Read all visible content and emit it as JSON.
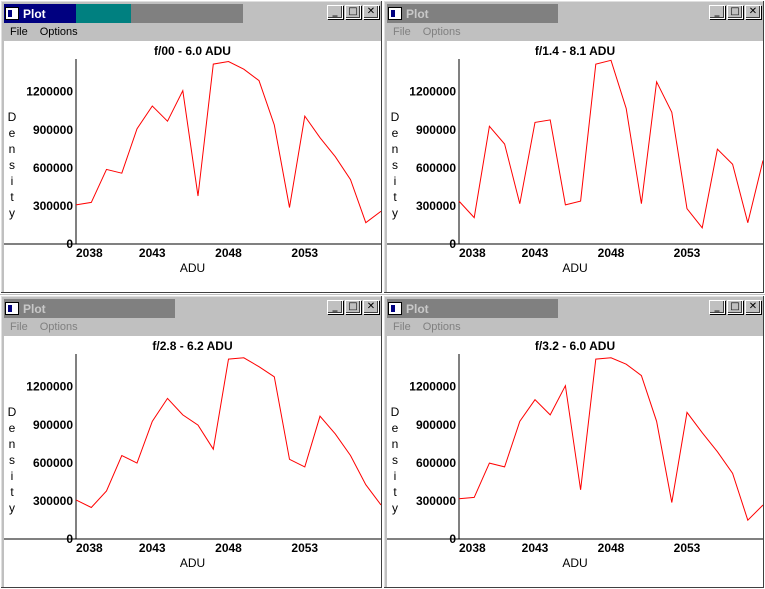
{
  "colors": {
    "active_title_bar": "#000080",
    "active_title_accent": "#008080",
    "inactive_title_bar": "#808080",
    "plot_line": "#ff0000",
    "axis": "#000000"
  },
  "menu": [
    "File",
    "Options"
  ],
  "window_controls": {
    "minimize": "_",
    "maximize": "□",
    "close": "✕"
  },
  "windows": [
    {
      "title": "Plot",
      "active": true,
      "chart_data": {
        "type": "line",
        "title": "f/00 - 6.0 ADU",
        "xlabel": "ADU",
        "ylabel": "Density",
        "xlim": [
          2038,
          2058
        ],
        "ylim": [
          0,
          1450000
        ],
        "xticks": [
          2038,
          2043,
          2048,
          2053
        ],
        "yticks": [
          0,
          300000,
          600000,
          900000,
          1200000
        ],
        "series": [
          {
            "x": [
              2038,
              2039,
              2040,
              2041,
              2042,
              2043,
              2044,
              2045,
              2046,
              2047,
              2048,
              2049,
              2050,
              2051,
              2052,
              2053,
              2054,
              2055,
              2056,
              2057,
              2058
            ],
            "values": [
              300000,
              320000,
              580000,
              550000,
              900000,
              1080000,
              960000,
              1200000,
              370000,
              1410000,
              1430000,
              1370000,
              1280000,
              930000,
              280000,
              1000000,
              830000,
              680000,
              500000,
              160000,
              250000
            ]
          }
        ]
      }
    },
    {
      "title": "Plot",
      "active": false,
      "chart_data": {
        "type": "line",
        "title": "f/1.4 - 8.1 ADU",
        "xlabel": "ADU",
        "ylabel": "Density",
        "xlim": [
          2038,
          2058
        ],
        "ylim": [
          0,
          1450000
        ],
        "xticks": [
          2038,
          2043,
          2048,
          2053
        ],
        "yticks": [
          0,
          300000,
          600000,
          900000,
          1200000
        ],
        "series": [
          {
            "x": [
              2038,
              2039,
              2040,
              2041,
              2042,
              2043,
              2044,
              2045,
              2046,
              2047,
              2048,
              2049,
              2050,
              2051,
              2052,
              2053,
              2054,
              2055,
              2056,
              2057,
              2058
            ],
            "values": [
              330000,
              200000,
              920000,
              780000,
              310000,
              950000,
              970000,
              300000,
              330000,
              1410000,
              1440000,
              1060000,
              310000,
              1270000,
              1030000,
              270000,
              120000,
              740000,
              620000,
              160000,
              650000
            ]
          }
        ]
      }
    },
    {
      "title": "Plot",
      "active": false,
      "chart_data": {
        "type": "line",
        "title": "f/2.8 - 6.2 ADU",
        "xlabel": "ADU",
        "ylabel": "Density",
        "xlim": [
          2038,
          2058
        ],
        "ylim": [
          0,
          1450000
        ],
        "xticks": [
          2038,
          2043,
          2048,
          2053
        ],
        "yticks": [
          0,
          300000,
          600000,
          900000,
          1200000
        ],
        "series": [
          {
            "x": [
              2038,
              2039,
              2040,
              2041,
              2042,
              2043,
              2044,
              2045,
              2046,
              2047,
              2048,
              2049,
              2050,
              2051,
              2052,
              2053,
              2054,
              2055,
              2056,
              2057,
              2058
            ],
            "values": [
              300000,
              240000,
              370000,
              650000,
              590000,
              920000,
              1100000,
              970000,
              890000,
              700000,
              1410000,
              1420000,
              1350000,
              1270000,
              620000,
              560000,
              960000,
              820000,
              650000,
              420000,
              260000
            ]
          }
        ]
      }
    },
    {
      "title": "Plot",
      "active": false,
      "chart_data": {
        "type": "line",
        "title": "f/3.2 - 6.0 ADU",
        "xlabel": "ADU",
        "ylabel": "Density",
        "xlim": [
          2038,
          2058
        ],
        "ylim": [
          0,
          1450000
        ],
        "xticks": [
          2038,
          2043,
          2048,
          2053
        ],
        "yticks": [
          0,
          300000,
          600000,
          900000,
          1200000
        ],
        "series": [
          {
            "x": [
              2038,
              2039,
              2040,
              2041,
              2042,
              2043,
              2044,
              2045,
              2046,
              2047,
              2048,
              2049,
              2050,
              2051,
              2052,
              2053,
              2054,
              2055,
              2056,
              2057,
              2058
            ],
            "values": [
              310000,
              320000,
              590000,
              560000,
              920000,
              1090000,
              970000,
              1200000,
              380000,
              1410000,
              1420000,
              1370000,
              1280000,
              920000,
              280000,
              990000,
              830000,
              680000,
              510000,
              140000,
              260000
            ]
          }
        ]
      }
    }
  ]
}
